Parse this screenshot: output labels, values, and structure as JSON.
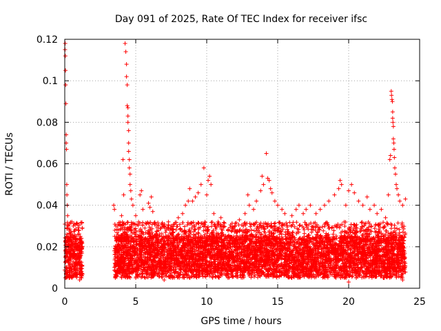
{
  "chart_data": {
    "type": "scatter",
    "title": "Day 091 of 2025, Rate Of TEC Index for receiver ifsc",
    "xlabel": "GPS time / hours",
    "ylabel": "ROTI / TECUs",
    "xlim": [
      0,
      25
    ],
    "ylim": [
      0,
      0.12
    ],
    "xticks": [
      0,
      5,
      10,
      15,
      20,
      25
    ],
    "yticks": [
      0,
      0.02,
      0.04,
      0.06,
      0.08,
      0.1,
      0.12
    ],
    "xtick_labels": [
      "0",
      "5",
      "10",
      "15",
      "20",
      "25"
    ],
    "ytick_labels": [
      "0",
      "0.02",
      "0.04",
      "0.06",
      "0.08",
      "0.1",
      "0.12"
    ],
    "grid": true,
    "marker": "plus",
    "series": [
      {
        "color": "#ff0000",
        "points": [
          [
            0.02,
            0.115
          ],
          [
            0.03,
            0.118
          ],
          [
            0.04,
            0.112
          ],
          [
            0.05,
            0.105
          ],
          [
            0.06,
            0.098
          ],
          [
            0.08,
            0.089
          ],
          [
            0.1,
            0.074
          ],
          [
            0.1,
            0.07
          ],
          [
            0.12,
            0.067
          ],
          [
            0.14,
            0.05
          ],
          [
            0.15,
            0.045
          ],
          [
            0.18,
            0.04
          ],
          [
            0.2,
            0.035
          ],
          [
            0.25,
            0.03
          ],
          [
            0.3,
            0.028
          ],
          [
            0.35,
            0.031
          ],
          [
            0.4,
            0.027
          ],
          [
            0.5,
            0.032
          ],
          [
            0.6,
            0.03
          ],
          [
            0.7,
            0.028
          ],
          [
            0.8,
            0.025
          ],
          [
            0.9,
            0.02
          ],
          [
            1.0,
            0.028
          ],
          [
            1.1,
            0.024
          ],
          [
            1.2,
            0.022
          ],
          [
            0.3,
            0.006
          ],
          [
            0.5,
            0.005
          ],
          [
            0.8,
            0.007
          ],
          [
            1.05,
            0.004
          ],
          [
            3.45,
            0.04
          ],
          [
            3.5,
            0.038
          ],
          [
            3.6,
            0.03
          ],
          [
            3.8,
            0.028
          ],
          [
            4.0,
            0.035
          ],
          [
            4.1,
            0.062
          ],
          [
            4.15,
            0.045
          ],
          [
            4.25,
            0.118
          ],
          [
            4.3,
            0.114
          ],
          [
            4.35,
            0.108
          ],
          [
            4.35,
            0.102
          ],
          [
            4.4,
            0.098
          ],
          [
            4.4,
            0.088
          ],
          [
            4.45,
            0.087
          ],
          [
            4.45,
            0.083
          ],
          [
            4.45,
            0.08
          ],
          [
            4.5,
            0.076
          ],
          [
            4.5,
            0.07
          ],
          [
            4.5,
            0.066
          ],
          [
            4.55,
            0.062
          ],
          [
            4.55,
            0.058
          ],
          [
            4.6,
            0.055
          ],
          [
            4.6,
            0.05
          ],
          [
            4.65,
            0.047
          ],
          [
            4.7,
            0.043
          ],
          [
            4.8,
            0.04
          ],
          [
            5.0,
            0.035
          ],
          [
            5.2,
            0.032
          ],
          [
            5.3,
            0.045
          ],
          [
            5.4,
            0.047
          ],
          [
            5.5,
            0.038
          ],
          [
            5.9,
            0.041
          ],
          [
            6.0,
            0.039
          ],
          [
            6.1,
            0.044
          ],
          [
            6.2,
            0.037
          ],
          [
            6.5,
            0.03
          ],
          [
            7.0,
            0.03
          ],
          [
            7.3,
            0.032
          ],
          [
            7.5,
            0.03
          ],
          [
            8.0,
            0.034
          ],
          [
            8.3,
            0.036
          ],
          [
            8.5,
            0.04
          ],
          [
            8.7,
            0.042
          ],
          [
            8.8,
            0.048
          ],
          [
            9.0,
            0.042
          ],
          [
            9.2,
            0.044
          ],
          [
            9.4,
            0.046
          ],
          [
            9.6,
            0.05
          ],
          [
            9.8,
            0.058
          ],
          [
            10.0,
            0.045
          ],
          [
            10.1,
            0.052
          ],
          [
            10.2,
            0.054
          ],
          [
            10.3,
            0.05
          ],
          [
            10.5,
            0.036
          ],
          [
            10.8,
            0.032
          ],
          [
            11.0,
            0.034
          ],
          [
            11.5,
            0.028
          ],
          [
            12.0,
            0.03
          ],
          [
            12.3,
            0.033
          ],
          [
            12.7,
            0.036
          ],
          [
            12.9,
            0.045
          ],
          [
            13.0,
            0.04
          ],
          [
            13.3,
            0.038
          ],
          [
            13.5,
            0.042
          ],
          [
            13.8,
            0.047
          ],
          [
            13.9,
            0.054
          ],
          [
            14.0,
            0.05
          ],
          [
            14.2,
            0.065
          ],
          [
            14.3,
            0.053
          ],
          [
            14.4,
            0.052
          ],
          [
            14.5,
            0.048
          ],
          [
            14.6,
            0.046
          ],
          [
            14.8,
            0.042
          ],
          [
            15.0,
            0.04
          ],
          [
            15.3,
            0.038
          ],
          [
            15.5,
            0.036
          ],
          [
            16.0,
            0.035
          ],
          [
            16.3,
            0.038
          ],
          [
            16.5,
            0.04
          ],
          [
            16.8,
            0.036
          ],
          [
            17.0,
            0.038
          ],
          [
            17.3,
            0.04
          ],
          [
            17.7,
            0.036
          ],
          [
            18.0,
            0.038
          ],
          [
            18.3,
            0.04
          ],
          [
            18.6,
            0.042
          ],
          [
            19.0,
            0.045
          ],
          [
            19.3,
            0.048
          ],
          [
            19.4,
            0.052
          ],
          [
            19.5,
            0.05
          ],
          [
            19.8,
            0.04
          ],
          [
            20.0,
            0.047
          ],
          [
            20.2,
            0.05
          ],
          [
            20.4,
            0.046
          ],
          [
            20.7,
            0.042
          ],
          [
            21.0,
            0.04
          ],
          [
            21.3,
            0.044
          ],
          [
            21.5,
            0.038
          ],
          [
            21.8,
            0.04
          ],
          [
            22.0,
            0.036
          ],
          [
            22.3,
            0.038
          ],
          [
            22.6,
            0.034
          ],
          [
            22.8,
            0.045
          ],
          [
            22.9,
            0.062
          ],
          [
            22.95,
            0.064
          ],
          [
            23.0,
            0.095
          ],
          [
            23.02,
            0.093
          ],
          [
            23.05,
            0.091
          ],
          [
            23.08,
            0.09
          ],
          [
            23.1,
            0.085
          ],
          [
            23.1,
            0.082
          ],
          [
            23.12,
            0.08
          ],
          [
            23.15,
            0.078
          ],
          [
            23.15,
            0.072
          ],
          [
            23.18,
            0.07
          ],
          [
            23.2,
            0.067
          ],
          [
            23.22,
            0.063
          ],
          [
            23.25,
            0.058
          ],
          [
            23.3,
            0.055
          ],
          [
            23.35,
            0.05
          ],
          [
            23.4,
            0.048
          ],
          [
            23.5,
            0.045
          ],
          [
            23.6,
            0.042
          ],
          [
            23.8,
            0.04
          ],
          [
            24.0,
            0.043
          ],
          [
            5.0,
            0.005
          ],
          [
            7.0,
            0.004
          ],
          [
            9.5,
            0.006
          ],
          [
            11.5,
            0.005
          ],
          [
            13.0,
            0.006
          ],
          [
            16.0,
            0.005
          ],
          [
            18.5,
            0.006
          ],
          [
            20.0,
            0.003
          ],
          [
            22.5,
            0.005
          ],
          [
            23.8,
            0.004
          ]
        ],
        "band": {
          "segments": [
            [
              0.0,
              1.25
            ],
            [
              3.5,
              24.0
            ]
          ],
          "low": 0.005,
          "mid_low": 0.008,
          "mid_high": 0.025,
          "high": 0.032
        }
      }
    ]
  }
}
